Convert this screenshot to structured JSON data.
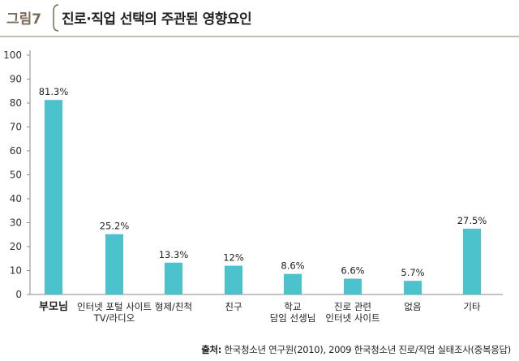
{
  "figure": {
    "label": "그림7",
    "title": "진로·직업 선택의 주관된 영향요인"
  },
  "source": {
    "prefix": "출처:",
    "text": "한국청소년 연구원(2010), 2009 한국청소년 진로/직업 실태조사(중복응답)"
  },
  "colors": {
    "bar": "#4cc3cc",
    "axis": "#8a8a8a",
    "label": "#7b6a55"
  },
  "chart_data": {
    "type": "bar",
    "categories": [
      [
        "부모님"
      ],
      [
        "인터넷 포털 사이트",
        "TV/라디오"
      ],
      [
        "형제/친척"
      ],
      [
        "친구"
      ],
      [
        "학교",
        "담임 선생님"
      ],
      [
        "진로 관련",
        "인터넷 사이트"
      ],
      [
        "없음"
      ],
      [
        "기타"
      ]
    ],
    "values": [
      81.3,
      25.2,
      13.3,
      12,
      8.6,
      6.6,
      5.7,
      27.5
    ],
    "value_labels": [
      "81.3%",
      "25.2%",
      "13.3%",
      "12%",
      "8.6%",
      "6.6%",
      "5.7%",
      "27.5%"
    ],
    "yticks": [
      0,
      10,
      20,
      30,
      40,
      50,
      60,
      70,
      80,
      90,
      100
    ],
    "ylim": [
      0,
      100
    ],
    "grid": false
  }
}
